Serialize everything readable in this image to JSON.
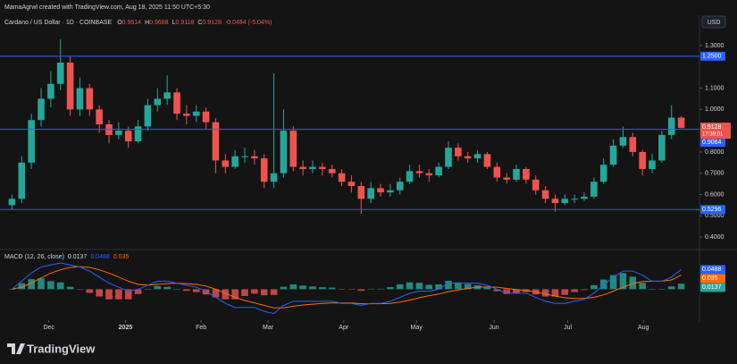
{
  "header": "MamaAgrwl created with TradingView.com, Aug 18, 2025 11:50 UTC+5:30",
  "currency": "USD",
  "brand": "TradingView",
  "chart_data": [
    {
      "type": "candlestick",
      "title": "Cardano / US Dollar · 1D · COINBASE",
      "ohlc_labels": [
        "O",
        "H",
        "L",
        "C"
      ],
      "change_label": "-0.0484 (-5.04%)",
      "countdown": "17:39:01",
      "up_color": "#26a69a",
      "down_color": "#ef5350",
      "open": [
        0.55,
        0.58,
        0.75,
        0.95,
        1.05,
        1.12,
        1.22,
        1.0,
        1.1,
        1.0,
        0.93,
        0.88,
        0.9,
        0.85,
        0.92,
        1.02,
        1.05,
        1.08,
        0.98,
        0.97,
        0.99,
        0.94,
        0.76,
        0.73,
        0.78,
        0.78,
        0.77,
        0.66,
        0.7,
        0.9,
        0.73,
        0.72,
        0.73,
        0.72,
        0.7,
        0.66,
        0.64,
        0.58,
        0.63,
        0.61,
        0.62,
        0.66,
        0.71,
        0.7,
        0.69,
        0.73,
        0.82,
        0.78,
        0.77,
        0.79,
        0.73,
        0.68,
        0.67,
        0.72,
        0.67,
        0.62,
        0.58,
        0.56,
        0.58,
        0.58,
        0.59,
        0.66,
        0.74,
        0.83,
        0.87,
        0.8,
        0.72,
        0.76,
        0.88,
        0.9614
      ],
      "high": [
        0.6,
        0.78,
        0.98,
        1.1,
        1.18,
        1.33,
        1.25,
        1.15,
        1.12,
        1.02,
        0.95,
        0.94,
        0.92,
        0.95,
        1.05,
        1.1,
        1.16,
        1.1,
        1.02,
        1.02,
        1.01,
        0.96,
        0.79,
        0.81,
        0.82,
        0.81,
        0.79,
        1.17,
        1.0,
        0.92,
        0.76,
        0.76,
        0.75,
        0.74,
        0.72,
        0.69,
        0.66,
        0.66,
        0.65,
        0.65,
        0.68,
        0.74,
        0.74,
        0.72,
        0.75,
        0.85,
        0.84,
        0.8,
        0.81,
        0.8,
        0.75,
        0.7,
        0.74,
        0.73,
        0.69,
        0.64,
        0.6,
        0.6,
        0.6,
        0.61,
        0.68,
        0.77,
        0.86,
        0.92,
        0.89,
        0.81,
        0.79,
        0.9,
        1.02,
        0.9688
      ],
      "low": [
        0.53,
        0.56,
        0.72,
        0.92,
        1.01,
        1.09,
        0.97,
        0.97,
        0.97,
        0.89,
        0.84,
        0.86,
        0.82,
        0.84,
        0.9,
        0.99,
        1.02,
        0.95,
        0.93,
        0.94,
        0.91,
        0.7,
        0.7,
        0.72,
        0.75,
        0.74,
        0.63,
        0.63,
        0.68,
        0.71,
        0.69,
        0.7,
        0.69,
        0.68,
        0.64,
        0.61,
        0.51,
        0.56,
        0.59,
        0.59,
        0.6,
        0.65,
        0.68,
        0.66,
        0.68,
        0.72,
        0.76,
        0.75,
        0.75,
        0.72,
        0.66,
        0.65,
        0.66,
        0.65,
        0.6,
        0.56,
        0.52,
        0.55,
        0.56,
        0.57,
        0.58,
        0.65,
        0.73,
        0.82,
        0.78,
        0.69,
        0.7,
        0.75,
        0.86,
        0.9118
      ],
      "close": [
        0.58,
        0.75,
        0.95,
        1.05,
        1.12,
        1.22,
        1.0,
        1.1,
        1.0,
        0.93,
        0.88,
        0.9,
        0.85,
        0.92,
        1.02,
        1.05,
        1.08,
        0.98,
        0.97,
        0.99,
        0.94,
        0.76,
        0.73,
        0.78,
        0.78,
        0.77,
        0.66,
        0.7,
        0.9,
        0.73,
        0.72,
        0.73,
        0.72,
        0.7,
        0.66,
        0.64,
        0.58,
        0.63,
        0.61,
        0.62,
        0.66,
        0.71,
        0.7,
        0.69,
        0.73,
        0.82,
        0.78,
        0.77,
        0.79,
        0.73,
        0.68,
        0.67,
        0.72,
        0.67,
        0.62,
        0.58,
        0.56,
        0.58,
        0.58,
        0.59,
        0.66,
        0.74,
        0.83,
        0.87,
        0.8,
        0.72,
        0.76,
        0.88,
        0.9612,
        0.9128
      ],
      "xlim": [
        0,
        70
      ],
      "xticks": [
        {
          "value": 4.3,
          "label": "Dec"
        },
        {
          "value": 12.2,
          "label": "2025"
        },
        {
          "value": 20,
          "label": "Feb"
        },
        {
          "value": 26.9,
          "label": "Mar"
        },
        {
          "value": 34.7,
          "label": "Apr"
        },
        {
          "value": 42.2,
          "label": "May"
        },
        {
          "value": 50.2,
          "label": "Jun"
        },
        {
          "value": 57.8,
          "label": "Jul"
        },
        {
          "value": 65.6,
          "label": "Aug"
        }
      ],
      "ylim": [
        0.35,
        1.346
      ],
      "yticks": [
        {
          "value": 0.4,
          "label": "0.4000"
        },
        {
          "value": 0.5,
          "label": "0.5000"
        },
        {
          "value": 0.6,
          "label": "0.6000"
        },
        {
          "value": 0.7,
          "label": "0.7000"
        },
        {
          "value": 0.8,
          "label": "0.8000"
        },
        {
          "value": 1.0,
          "label": "1.0000"
        },
        {
          "value": 1.1,
          "label": "1.1000"
        },
        {
          "value": 1.3,
          "label": "1.3000"
        }
      ],
      "hlines": [
        {
          "value": 1.25,
          "label": "1.2500"
        },
        {
          "value": 0.9064,
          "label": "0.9064"
        },
        {
          "value": 0.5296,
          "label": "0.5296"
        }
      ],
      "hline_color": "#2962ff",
      "grid": false
    },
    {
      "type": "macd",
      "title": "MACD (12, 26, close)",
      "histogram": {
        "color": "#26a69a",
        "negative_color": "#ef5350",
        "values": [
          0.0,
          0.015,
          0.025,
          0.027,
          0.02,
          0.017,
          0.006,
          -0.001,
          -0.009,
          -0.018,
          -0.025,
          -0.025,
          -0.025,
          -0.012,
          0.0,
          0.008,
          0.006,
          0.0,
          -0.004,
          -0.007,
          -0.013,
          -0.02,
          -0.025,
          -0.025,
          -0.017,
          -0.011,
          -0.015,
          -0.014,
          0.006,
          0.012,
          0.009,
          0.007,
          0.005,
          0.004,
          -0.001,
          -0.001,
          -0.004,
          0.001,
          0.001,
          0.005,
          0.012,
          0.017,
          0.016,
          0.011,
          0.012,
          0.021,
          0.017,
          0.013,
          0.01,
          0.004,
          -0.005,
          -0.012,
          -0.009,
          -0.007,
          -0.013,
          -0.018,
          -0.018,
          -0.014,
          -0.007,
          -0.002,
          0.01,
          0.024,
          0.035,
          0.04,
          0.031,
          0.016,
          0.0,
          0.0,
          0.007,
          0.0137
        ]
      },
      "macd": {
        "color": "#2962ff",
        "values": [
          0.0,
          0.02,
          0.04,
          0.055,
          0.06,
          0.065,
          0.06,
          0.055,
          0.045,
          0.03,
          0.015,
          0.005,
          -0.005,
          0.0,
          0.01,
          0.02,
          0.02,
          0.015,
          0.01,
          0.005,
          -0.005,
          -0.02,
          -0.035,
          -0.045,
          -0.045,
          -0.045,
          -0.055,
          -0.06,
          -0.04,
          -0.03,
          -0.03,
          -0.03,
          -0.03,
          -0.03,
          -0.035,
          -0.035,
          -0.04,
          -0.035,
          -0.035,
          -0.03,
          -0.02,
          -0.01,
          -0.005,
          -0.005,
          0.0,
          0.015,
          0.015,
          0.015,
          0.015,
          0.01,
          0.0,
          -0.01,
          -0.01,
          -0.01,
          -0.02,
          -0.03,
          -0.035,
          -0.035,
          -0.03,
          -0.025,
          -0.01,
          0.01,
          0.03,
          0.045,
          0.045,
          0.035,
          0.02,
          0.02,
          0.03,
          0.0488
        ]
      },
      "signal": {
        "color": "#ff6d00",
        "values": [
          0.0,
          0.005,
          0.015,
          0.028,
          0.04,
          0.048,
          0.054,
          0.056,
          0.054,
          0.048,
          0.04,
          0.03,
          0.02,
          0.012,
          0.01,
          0.012,
          0.014,
          0.015,
          0.014,
          0.012,
          0.008,
          0.0,
          -0.01,
          -0.02,
          -0.028,
          -0.034,
          -0.04,
          -0.046,
          -0.046,
          -0.042,
          -0.039,
          -0.037,
          -0.035,
          -0.034,
          -0.034,
          -0.034,
          -0.036,
          -0.036,
          -0.036,
          -0.035,
          -0.032,
          -0.027,
          -0.021,
          -0.016,
          -0.012,
          -0.006,
          -0.002,
          0.002,
          0.005,
          0.006,
          0.005,
          0.002,
          -0.001,
          -0.003,
          -0.007,
          -0.012,
          -0.017,
          -0.021,
          -0.023,
          -0.023,
          -0.02,
          -0.014,
          -0.005,
          0.005,
          0.014,
          0.019,
          0.02,
          0.02,
          0.023,
          0.035
        ]
      },
      "ylim": [
        -0.07,
        0.085
      ]
    }
  ]
}
